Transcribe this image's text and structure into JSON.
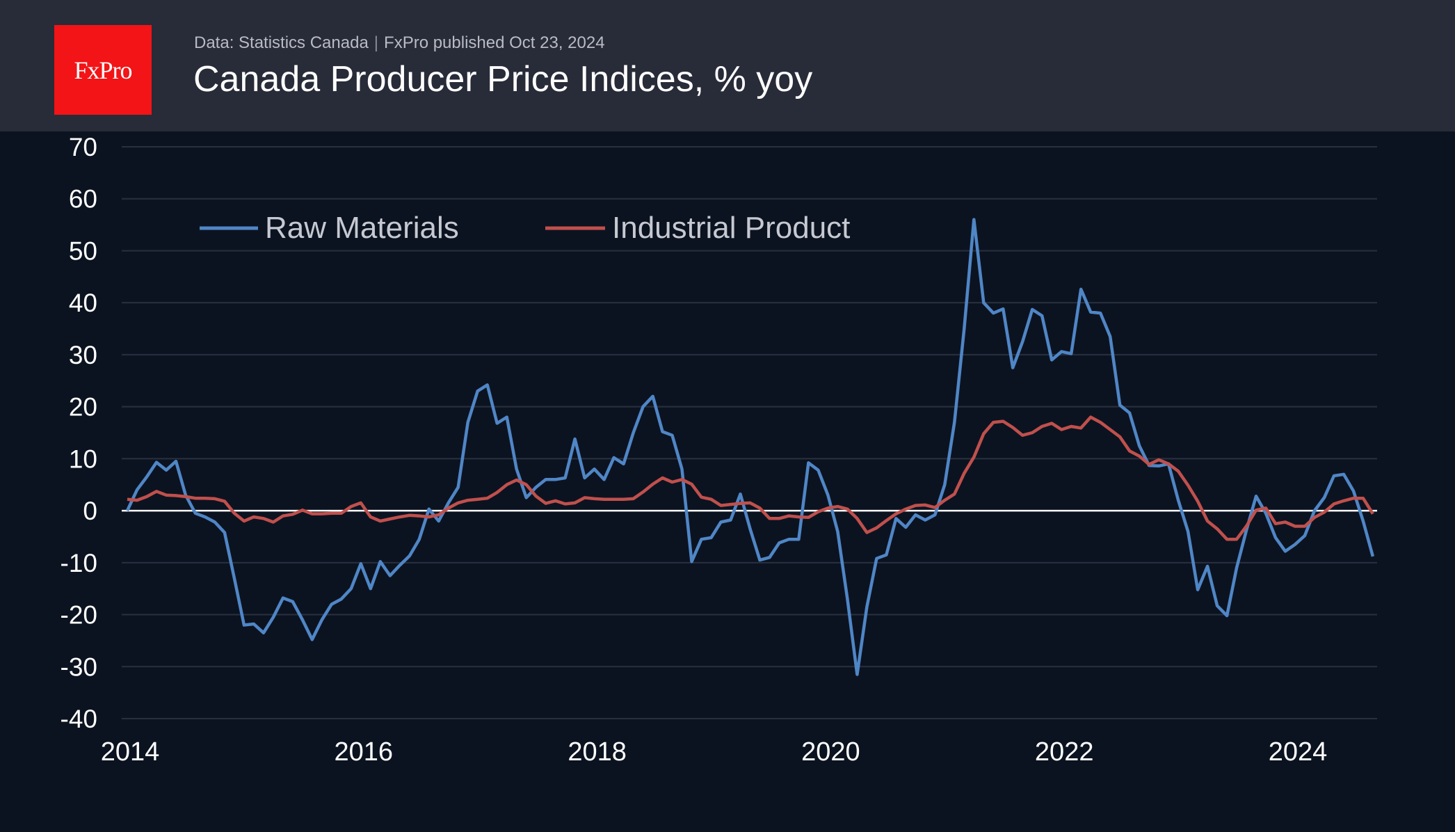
{
  "header": {
    "logo_text": "FxPro",
    "source": "Data: Statistics Canada",
    "published": "FxPro published Oct 23, 2024",
    "title": "Canada Producer Price Indices, % yoy"
  },
  "colors": {
    "raw": "#4f86c6",
    "industrial": "#c0504d",
    "background": "#0c1320",
    "header": "#282b38",
    "grid": "#283040"
  },
  "chart_data": {
    "type": "line",
    "title": "Canada Producer Price Indices, % yoy",
    "xlabel": "",
    "ylabel": "",
    "x_start": "2014-01",
    "frequency": "monthly",
    "xlim": [
      2014.0,
      2024.75
    ],
    "ylim": [
      -40,
      70
    ],
    "yticks": [
      70,
      60,
      50,
      40,
      30,
      20,
      10,
      0,
      -10,
      -20,
      -30,
      -40
    ],
    "xticks": [
      "2014",
      "2016",
      "2018",
      "2020",
      "2022",
      "2024"
    ],
    "grid": true,
    "legend_placement": "top-left",
    "series": [
      {
        "name": "Raw Materials",
        "values": [
          0,
          4,
          6.5,
          9.3,
          7.8,
          9.5,
          3,
          -0.5,
          -1.2,
          -2.2,
          -4.2,
          -13,
          -22,
          -21.8,
          -23.5,
          -20.5,
          -16.8,
          -17.5,
          -21,
          -24.8,
          -21,
          -18,
          -17,
          -15,
          -10.2,
          -15,
          -9.8,
          -12.5,
          -10.5,
          -8.7,
          -5.5,
          0.3,
          -2,
          1.5,
          4.5,
          17,
          23,
          24.2,
          16.8,
          18,
          8,
          2.5,
          4.5,
          6,
          6,
          6.3,
          13.8,
          6.3,
          8,
          6,
          10.2,
          9,
          15,
          20,
          22,
          15.2,
          14.5,
          8,
          -9.8,
          -5.5,
          -5.2,
          -2.2,
          -1.8,
          3.2,
          -3.5,
          -9.5,
          -9,
          -6.2,
          -5.5,
          -5.5,
          9.2,
          7.8,
          3,
          -4,
          -17,
          -31.5,
          -18.5,
          -9.2,
          -8.5,
          -1.5,
          -3.2,
          -0.8,
          -1.8,
          -0.8,
          5,
          17,
          35,
          56,
          40,
          38,
          38.8,
          27.5,
          32.5,
          38.7,
          37.5,
          29,
          30.6,
          30.2,
          42.6,
          38.2,
          38,
          33.5,
          20.3,
          18.8,
          12.5,
          8.7,
          8.6,
          9,
          2,
          -4,
          -15.2,
          -10.7,
          -18.3,
          -20.2,
          -11,
          -3.8,
          2.8,
          -0.5,
          -5.2,
          -7.8,
          -6.5,
          -4.8,
          0,
          2.5,
          6.7,
          7,
          3.8,
          -2,
          -8.8
        ]
      },
      {
        "name": "Industrial Product",
        "values": [
          2.2,
          2,
          2.7,
          3.7,
          3,
          2.9,
          2.7,
          2.4,
          2.4,
          2.3,
          1.8,
          -0.5,
          -2,
          -1.2,
          -1.5,
          -2.2,
          -1,
          -0.7,
          0.1,
          -0.6,
          -0.6,
          -0.5,
          -0.5,
          0.8,
          1.5,
          -1.2,
          -2,
          -1.6,
          -1.2,
          -0.9,
          -1,
          -1.2,
          -0.8,
          0.5,
          1.5,
          2,
          2.2,
          2.4,
          3.5,
          5,
          5.9,
          5,
          2.8,
          1.4,
          1.9,
          1.3,
          1.5,
          2.5,
          2.3,
          2.2,
          2.2,
          2.2,
          2.3,
          3.6,
          5.1,
          6.3,
          5.5,
          6,
          5.1,
          2.6,
          2.2,
          1,
          1.2,
          1.4,
          1.5,
          0.5,
          -1.5,
          -1.5,
          -1,
          -1.2,
          -1.3,
          -0.2,
          0.5,
          0.8,
          0.3,
          -1.5,
          -4.2,
          -3.3,
          -1.9,
          -0.6,
          0.3,
          1,
          1.1,
          0.6,
          2,
          3.2,
          7.2,
          10.3,
          14.8,
          17,
          17.2,
          16,
          14.5,
          15,
          16.2,
          16.8,
          15.6,
          16.2,
          15.9,
          18,
          17,
          15.6,
          14.2,
          11.5,
          10.5,
          8.9,
          9.8,
          9,
          7.6,
          4.9,
          1.8,
          -2,
          -3.5,
          -5.5,
          -5.5,
          -3,
          0.1,
          0.5,
          -2.5,
          -2.2,
          -3,
          -3,
          -1.3,
          -0.3,
          1.3,
          1.9,
          2.4,
          2.4,
          -0.6
        ]
      }
    ]
  }
}
